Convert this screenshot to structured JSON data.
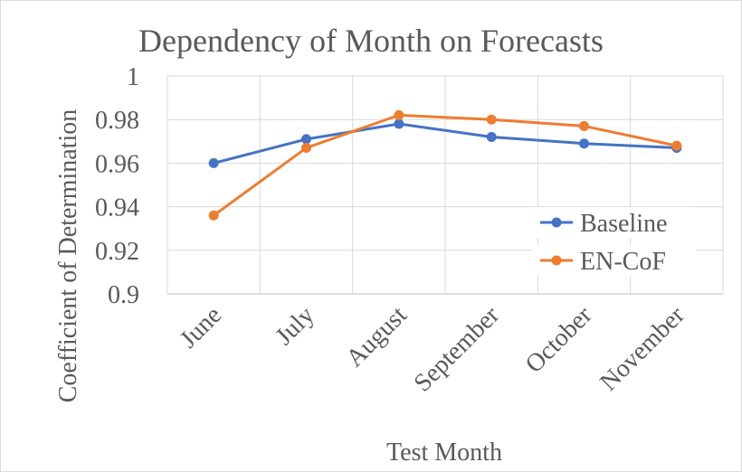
{
  "chart_data": {
    "type": "line",
    "title": "Dependency of Month on Forecasts",
    "xlabel": "Test Month",
    "ylabel": "Coefficient of Determination",
    "categories": [
      "June",
      "July",
      "August",
      "September",
      "October",
      "November"
    ],
    "ylim": [
      0.9,
      1
    ],
    "yticks": [
      0.9,
      0.92,
      0.94,
      0.96,
      0.98,
      1
    ],
    "ytick_labels": [
      "0.9",
      "0.92",
      "0.94",
      "0.96",
      "0.98",
      "1"
    ],
    "grid": true,
    "legend_position": "right",
    "series": [
      {
        "name": "Baseline",
        "color": "#4472c4",
        "values": [
          0.96,
          0.971,
          0.978,
          0.972,
          0.969,
          0.967
        ]
      },
      {
        "name": "EN-CoF",
        "color": "#ed7d31",
        "values": [
          0.936,
          0.967,
          0.982,
          0.98,
          0.977,
          0.968
        ]
      }
    ]
  }
}
